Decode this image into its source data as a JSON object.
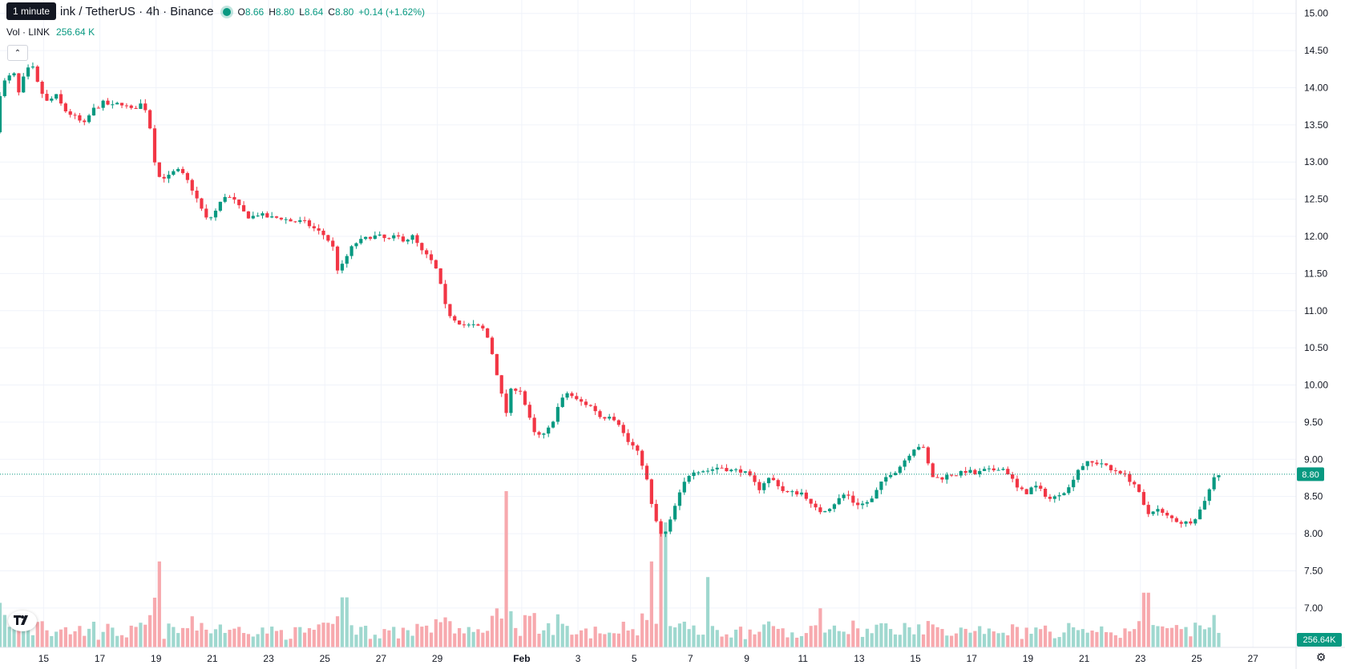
{
  "header": {
    "tooltip": "1 minute",
    "symbol_title": "ink / TetherUS · 4h · Binance",
    "ohlc": {
      "o_label": "O",
      "o_value": "8.66",
      "h_label": "H",
      "h_value": "8.80",
      "l_label": "L",
      "l_value": "8.64",
      "c_label": "C",
      "c_value": "8.80",
      "change": "+0.14 (+1.62%)"
    },
    "volume_label": "Vol · LINK",
    "volume_value": "256.64 K"
  },
  "colors": {
    "up": "#089981",
    "down": "#f23645",
    "up_volume": "#9fd8cf",
    "down_volume": "#f7a9ae",
    "grid": "#f0f3fa",
    "text": "#131722"
  },
  "price_badge": "8.80",
  "volume_badge": "256.64K",
  "chart_data": {
    "type": "candlestick",
    "y_ticks": [
      "15.00",
      "14.50",
      "14.00",
      "13.50",
      "13.00",
      "12.50",
      "12.00",
      "11.50",
      "11.00",
      "10.50",
      "10.00",
      "9.50",
      "9.00",
      "8.50",
      "8.00",
      "7.50",
      "7.00"
    ],
    "x_ticks": [
      {
        "label": "15",
        "day": 15
      },
      {
        "label": "17",
        "day": 17
      },
      {
        "label": "19",
        "day": 19
      },
      {
        "label": "21",
        "day": 21
      },
      {
        "label": "23",
        "day": 23
      },
      {
        "label": "25",
        "day": 25
      },
      {
        "label": "27",
        "day": 27
      },
      {
        "label": "29",
        "day": 29
      },
      {
        "label": "Feb",
        "day": 32
      },
      {
        "label": "3",
        "day": 34
      },
      {
        "label": "5",
        "day": 36
      },
      {
        "label": "7",
        "day": 38
      },
      {
        "label": "9",
        "day": 40
      },
      {
        "label": "11",
        "day": 42
      },
      {
        "label": "13",
        "day": 44
      },
      {
        "label": "15",
        "day": 46
      },
      {
        "label": "17",
        "day": 48
      },
      {
        "label": "19",
        "day": 50
      },
      {
        "label": "21",
        "day": 52
      },
      {
        "label": "23",
        "day": 54
      },
      {
        "label": "25",
        "day": 56
      },
      {
        "label": "27",
        "day": 58
      }
    ],
    "day_range": [
      13.45,
      59.05
    ],
    "ylim": [
      6.47,
      15.18
    ],
    "last_price": 8.8,
    "price_path": [
      [
        13.45,
        13.4
      ],
      [
        13.6,
        13.9
      ],
      [
        13.8,
        14.1
      ],
      [
        14.1,
        14.2
      ],
      [
        14.3,
        13.9
      ],
      [
        14.5,
        14.2
      ],
      [
        14.75,
        14.3
      ],
      [
        15.0,
        14.0
      ],
      [
        15.3,
        13.8
      ],
      [
        15.6,
        13.9
      ],
      [
        15.9,
        13.7
      ],
      [
        16.3,
        13.6
      ],
      [
        16.6,
        13.5
      ],
      [
        16.9,
        13.7
      ],
      [
        17.3,
        13.8
      ],
      [
        17.6,
        13.75
      ],
      [
        17.9,
        13.8
      ],
      [
        18.3,
        13.7
      ],
      [
        18.7,
        13.8
      ],
      [
        18.9,
        13.6
      ],
      [
        19.05,
        13.2
      ],
      [
        19.2,
        12.8
      ],
      [
        19.6,
        12.8
      ],
      [
        19.9,
        12.9
      ],
      [
        20.2,
        12.8
      ],
      [
        20.5,
        12.6
      ],
      [
        20.8,
        12.35
      ],
      [
        21.0,
        12.2
      ],
      [
        21.3,
        12.35
      ],
      [
        21.6,
        12.55
      ],
      [
        21.9,
        12.5
      ],
      [
        22.2,
        12.35
      ],
      [
        22.5,
        12.25
      ],
      [
        22.8,
        12.3
      ],
      [
        23.2,
        12.25
      ],
      [
        23.6,
        12.25
      ],
      [
        24.0,
        12.2
      ],
      [
        24.4,
        12.2
      ],
      [
        24.8,
        12.1
      ],
      [
        25.2,
        12.0
      ],
      [
        25.45,
        11.85
      ],
      [
        25.65,
        11.5
      ],
      [
        25.9,
        11.7
      ],
      [
        26.2,
        11.9
      ],
      [
        26.5,
        11.95
      ],
      [
        26.8,
        12.0
      ],
      [
        27.1,
        12.0
      ],
      [
        27.4,
        11.95
      ],
      [
        27.7,
        12.0
      ],
      [
        28.0,
        11.95
      ],
      [
        28.3,
        12.0
      ],
      [
        28.6,
        11.8
      ],
      [
        28.9,
        11.7
      ],
      [
        29.2,
        11.5
      ],
      [
        29.4,
        11.1
      ],
      [
        29.6,
        10.95
      ],
      [
        29.9,
        10.85
      ],
      [
        30.2,
        10.8
      ],
      [
        30.5,
        10.8
      ],
      [
        30.8,
        10.75
      ],
      [
        31.0,
        10.6
      ],
      [
        31.2,
        10.3
      ],
      [
        31.4,
        9.95
      ],
      [
        31.6,
        9.6
      ],
      [
        31.8,
        9.95
      ],
      [
        32.1,
        9.95
      ],
      [
        32.4,
        9.6
      ],
      [
        32.6,
        9.35
      ],
      [
        32.9,
        9.3
      ],
      [
        33.2,
        9.45
      ],
      [
        33.5,
        9.75
      ],
      [
        33.8,
        9.9
      ],
      [
        34.1,
        9.8
      ],
      [
        34.4,
        9.75
      ],
      [
        34.7,
        9.7
      ],
      [
        35.0,
        9.55
      ],
      [
        35.3,
        9.6
      ],
      [
        35.6,
        9.5
      ],
      [
        35.9,
        9.25
      ],
      [
        36.2,
        9.15
      ],
      [
        36.4,
        9.0
      ],
      [
        36.6,
        8.75
      ],
      [
        36.8,
        8.35
      ],
      [
        37.0,
        8.1
      ],
      [
        37.15,
        7.95
      ],
      [
        37.35,
        8.05
      ],
      [
        37.6,
        8.35
      ],
      [
        37.9,
        8.65
      ],
      [
        38.2,
        8.85
      ],
      [
        38.5,
        8.85
      ],
      [
        38.8,
        8.85
      ],
      [
        39.2,
        8.9
      ],
      [
        39.6,
        8.85
      ],
      [
        40.0,
        8.85
      ],
      [
        40.3,
        8.75
      ],
      [
        40.6,
        8.6
      ],
      [
        40.9,
        8.75
      ],
      [
        41.2,
        8.7
      ],
      [
        41.5,
        8.55
      ],
      [
        41.8,
        8.55
      ],
      [
        42.2,
        8.55
      ],
      [
        42.5,
        8.35
      ],
      [
        42.8,
        8.3
      ],
      [
        43.1,
        8.35
      ],
      [
        43.4,
        8.45
      ],
      [
        43.7,
        8.55
      ],
      [
        44.0,
        8.4
      ],
      [
        44.3,
        8.4
      ],
      [
        44.6,
        8.45
      ],
      [
        44.9,
        8.65
      ],
      [
        45.2,
        8.8
      ],
      [
        45.5,
        8.85
      ],
      [
        45.8,
        9.0
      ],
      [
        46.1,
        9.15
      ],
      [
        46.4,
        9.2
      ],
      [
        46.6,
        8.95
      ],
      [
        46.8,
        8.75
      ],
      [
        47.1,
        8.75
      ],
      [
        47.4,
        8.8
      ],
      [
        47.7,
        8.8
      ],
      [
        48.0,
        8.85
      ],
      [
        48.3,
        8.8
      ],
      [
        48.6,
        8.85
      ],
      [
        48.9,
        8.85
      ],
      [
        49.2,
        8.9
      ],
      [
        49.5,
        8.8
      ],
      [
        49.8,
        8.6
      ],
      [
        50.1,
        8.55
      ],
      [
        50.4,
        8.65
      ],
      [
        50.7,
        8.55
      ],
      [
        51.0,
        8.45
      ],
      [
        51.3,
        8.55
      ],
      [
        51.6,
        8.6
      ],
      [
        51.9,
        8.85
      ],
      [
        52.2,
        8.95
      ],
      [
        52.5,
        8.95
      ],
      [
        52.8,
        8.95
      ],
      [
        53.1,
        8.85
      ],
      [
        53.4,
        8.85
      ],
      [
        53.7,
        8.75
      ],
      [
        54.0,
        8.65
      ],
      [
        54.2,
        8.45
      ],
      [
        54.4,
        8.25
      ],
      [
        54.7,
        8.35
      ],
      [
        55.0,
        8.25
      ],
      [
        55.3,
        8.2
      ],
      [
        55.6,
        8.15
      ],
      [
        55.9,
        8.15
      ],
      [
        56.2,
        8.25
      ],
      [
        56.5,
        8.5
      ],
      [
        56.7,
        8.65
      ],
      [
        56.8,
        8.8
      ]
    ],
    "volume_spikes": [
      [
        19.1,
        0.55
      ],
      [
        25.7,
        0.32
      ],
      [
        31.5,
        1.0
      ],
      [
        36.6,
        0.55
      ],
      [
        37.05,
        0.8
      ],
      [
        38.6,
        0.45
      ],
      [
        42.6,
        0.25
      ],
      [
        54.2,
        0.35
      ]
    ]
  }
}
